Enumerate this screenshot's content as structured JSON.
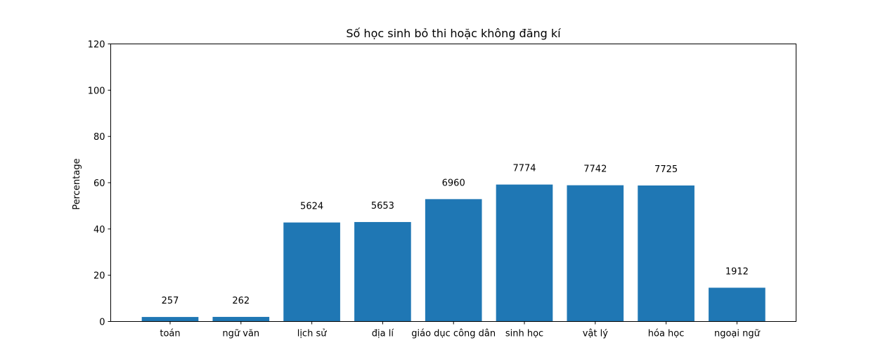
{
  "chart_data": {
    "type": "bar",
    "title": "Số học sinh bỏ thi hoặc không đăng kí",
    "xlabel": "",
    "ylabel": "Percentage",
    "ylim": [
      0,
      120
    ],
    "yticks": [
      0,
      20,
      40,
      60,
      80,
      100,
      120
    ],
    "grid": false,
    "bar_color": "#1f77b4",
    "categories": [
      "toán",
      "ngữ văn",
      "lịch sử",
      "địa lí",
      "giáo dục công dân",
      "sinh học",
      "vật lý",
      "hóa học",
      "ngoại ngữ"
    ],
    "values": [
      1.95,
      1.99,
      42.8,
      43.0,
      52.9,
      59.2,
      58.9,
      58.8,
      14.6
    ],
    "data_labels": [
      "257",
      "262",
      "5624",
      "5653",
      "6960",
      "7774",
      "7742",
      "7725",
      "1912"
    ]
  }
}
